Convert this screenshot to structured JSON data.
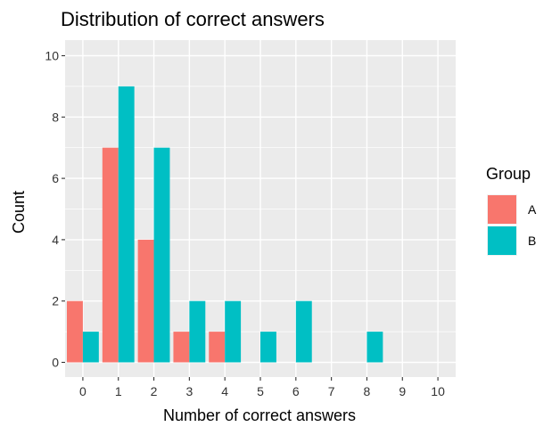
{
  "chart_data": {
    "type": "bar",
    "title": "Distribution of correct answers",
    "xlabel": "Number of correct answers",
    "ylabel": "Count",
    "categories": [
      "0",
      "1",
      "2",
      "3",
      "4",
      "5",
      "6",
      "7",
      "8",
      "9",
      "10"
    ],
    "series": [
      {
        "name": "A",
        "color": "#F8766D",
        "values": [
          2,
          7,
          4,
          1,
          1,
          0,
          0,
          0,
          0,
          0,
          0
        ]
      },
      {
        "name": "B",
        "color": "#00BFC4",
        "values": [
          1,
          9,
          7,
          2,
          2,
          1,
          2,
          0,
          1,
          0,
          0
        ]
      }
    ],
    "ylim": [
      0,
      10
    ],
    "yticks": [
      0,
      2,
      4,
      6,
      8,
      10
    ],
    "grid": true,
    "legend": {
      "title": "Group",
      "position": "right"
    },
    "panel_background": "#EBEBEB",
    "grid_color": "#FFFFFF"
  }
}
